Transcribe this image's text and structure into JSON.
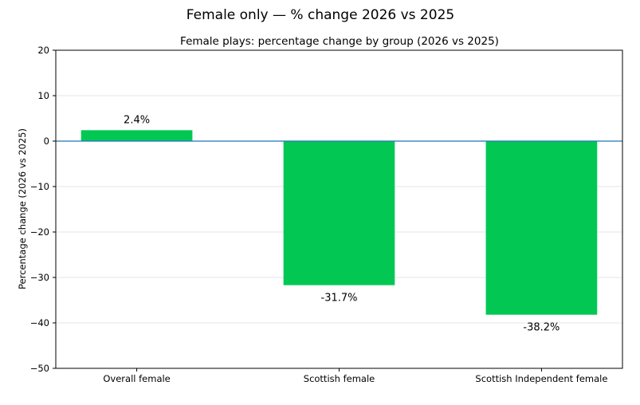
{
  "figure": {
    "suptitle": "Female only — % change 2026 vs 2025"
  },
  "chart_data": {
    "type": "bar",
    "title": "Female plays: percentage change by group (2026 vs 2025)",
    "xlabel": "",
    "ylabel": "Percentage change (2026 vs 2025)",
    "categories": [
      "Overall female",
      "Scottish female",
      "Scottish Independent female"
    ],
    "values": [
      2.4,
      -31.7,
      -38.2
    ],
    "data_labels": [
      "2.4%",
      "-31.7%",
      "-38.2%"
    ],
    "ylim": [
      -50,
      20
    ],
    "yticks": [
      20,
      10,
      0,
      -10,
      -20,
      -30,
      -40,
      -50
    ],
    "ytick_labels": [
      "20",
      "10",
      "0",
      "−10",
      "−20",
      "−30",
      "−40",
      "−50"
    ],
    "grid": true,
    "reference_line": 0,
    "colors": {
      "bar": "#02c853",
      "reference_line": "#1f77b4",
      "grid": "#e6e6e6",
      "axes": "#000000"
    }
  }
}
